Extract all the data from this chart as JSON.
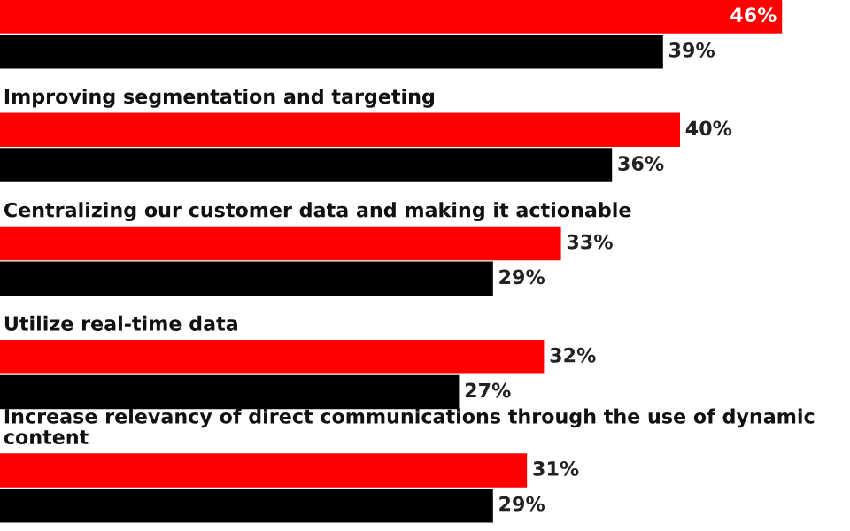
{
  "chart_data": {
    "type": "bar",
    "orientation": "horizontal",
    "categories": [
      null,
      "Improving segmentation and targeting",
      "Centralizing our customer data and making it actionable",
      "Utilize real-time data",
      "Increase relevancy of direct communications through the use of dynamic content"
    ],
    "series": [
      {
        "color": "#ff0000",
        "values": [
          46,
          40,
          33,
          32,
          31
        ],
        "value_labels": [
          "46%",
          "40%",
          "33%",
          "32%",
          "31%"
        ]
      },
      {
        "color": "#000000",
        "values": [
          39,
          36,
          29,
          27,
          29
        ],
        "value_labels": [
          "39%",
          "36%",
          "29%",
          "27%",
          "29%"
        ]
      }
    ],
    "xlim": [
      0,
      50
    ]
  }
}
